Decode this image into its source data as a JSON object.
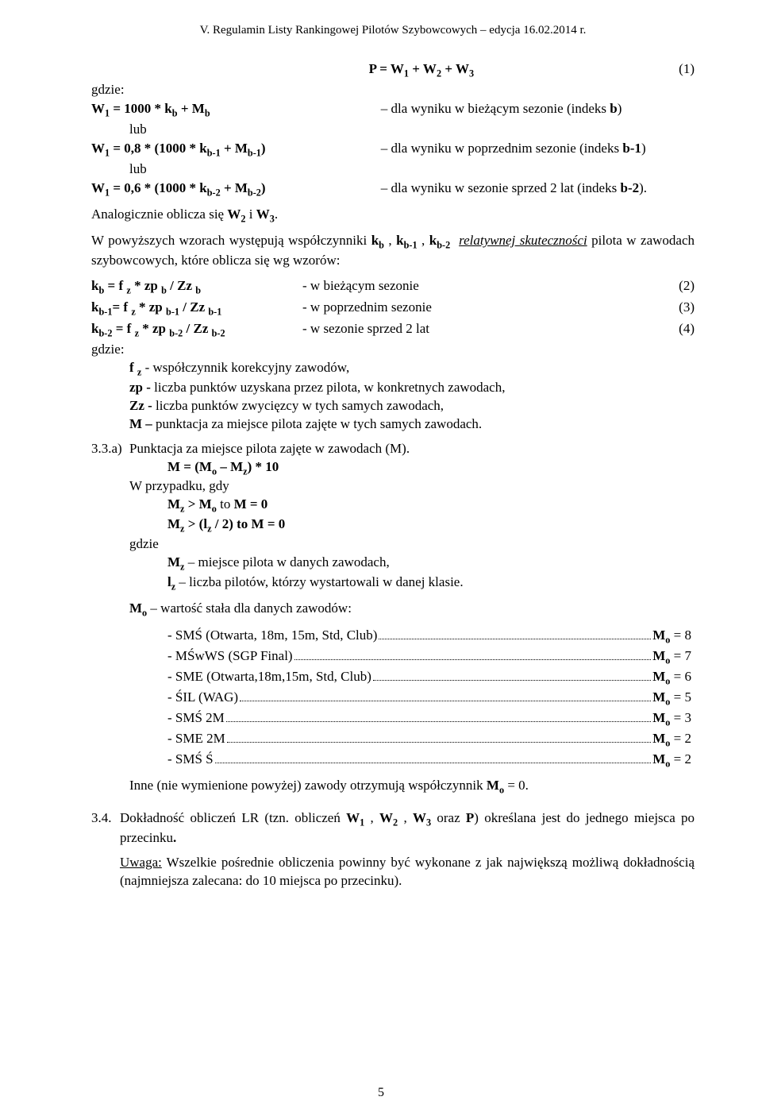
{
  "header": "V. Regulamin Listy Rankingowej Pilotów Szybowcowych – edycja 16.02.2014 r.",
  "gdzie": "gdzie:",
  "lub": "lub",
  "eq1": {
    "lhs": "P = W",
    "sub1": "1",
    "plus": " + W",
    "sub2": "2",
    "plus2": " + W",
    "sub3": "3",
    "num": "(1)"
  },
  "w1a": {
    "l": "W",
    "s1": "1",
    "t1": " = 1000 * k",
    "s2": "b",
    "t2": " + M",
    "s3": "b",
    "r": "– dla wyniku w bieżącym sezonie (indeks ",
    "rb": "b",
    "rc": ")"
  },
  "w1b": {
    "l": "W",
    "s1": "1",
    "t1": " = 0,8 * (1000 * k",
    "s2": "b-1",
    "t2": " + M",
    "s3": "b-1",
    "t3": ")",
    "r": "– dla wyniku w poprzednim sezonie (indeks ",
    "rb": "b-1",
    "rc": ")"
  },
  "w1c": {
    "l": "W",
    "s1": "1",
    "t1": " = 0,6 * (1000 * k",
    "s2": "b-2",
    "t2": " + M",
    "s3": "b-2",
    "t3": ")",
    "r": "– dla wyniku w sezonie sprzed 2 lat (indeks ",
    "rb": "b-2",
    "rc": ")."
  },
  "analog": {
    "a": "Analogicznie oblicza się ",
    "w2": "W",
    "s2": "2",
    "i": " i ",
    "w3": "W",
    "s3": "3",
    "dot": "."
  },
  "intro": {
    "a": "W powyższych wzorach występują współczynniki ",
    "k1": "k",
    "s1": "b",
    "c1": " , ",
    "k2": "k",
    "s2": "b-1",
    "c2": " , ",
    "k3": "k",
    "s3": "b-2",
    "rel": "relatywnej skuteczności",
    "b": " pilota w zawodach szybowcowych, które oblicza się wg wzorów:"
  },
  "eq2": {
    "l": "k",
    "s1": "b",
    "t1": " = f ",
    "sz": "z",
    "t2": " * zp ",
    "sb": "b",
    "t3": " / Zz ",
    "sb2": "b",
    "desc": "- w bieżącym sezonie",
    "num": "(2)"
  },
  "eq3": {
    "l": "k",
    "s1": "b-1",
    "t1": "= f ",
    "sz": "z",
    "t2": " * zp ",
    "sb": "b-1",
    "t3": " / Zz ",
    "sb2": "b-1",
    "desc": "- w poprzednim sezonie",
    "num": "(3)"
  },
  "eq4": {
    "l": "k",
    "s1": "b-2",
    "t1": " = f ",
    "sz": "z",
    "t2": " * zp ",
    "sb": "b-2",
    "t3": " / Zz ",
    "sb2": "b-2",
    "desc": "- w sezonie sprzed 2 lat",
    "num": "(4)"
  },
  "defs": {
    "fz": {
      "a": "f ",
      "s": "z",
      "b": " - współczynnik korekcyjny zawodów,"
    },
    "zp": {
      "a": "zp -",
      "b": " liczba punktów uzyskana przez pilota, w konkretnych zawodach,"
    },
    "Zz": {
      "a": "Zz -",
      "b": " liczba punktów zwycięzcy w tych samych zawodach,"
    },
    "M": {
      "a": "M –",
      "b": " punktacja za miejsce pilota zajęte w tych samych zawodach."
    }
  },
  "sec33a": {
    "num": "3.3.a)",
    "title": "Punktacja za miejsce pilota zajęte w zawodach (M).",
    "mline": {
      "a": "M = (M",
      "so": "o",
      "b": " – M",
      "sz": "z",
      "c": ") * 10"
    },
    "wprz": "W przypadku, gdy",
    "c1": {
      "a": "M",
      "sz": "z",
      "b": " > M",
      "so": "o",
      "c": " to ",
      "m": "M = 0"
    },
    "c2": {
      "a": "M",
      "sz": "z",
      "b": " > (l",
      "slz": "z",
      "c": " / 2) to ",
      "m": "M = 0"
    },
    "gdzie": "gdzie",
    "mz": {
      "a": "M",
      "s": "z",
      "b": " – miejsce pilota w danych zawodach,"
    },
    "lz": {
      "a": "l",
      "s": "z",
      "b": " – liczba pilotów, którzy wystartowali w danej klasie."
    },
    "moHead": {
      "a": "M",
      "s": "o",
      "b": " – wartość stała dla danych zawodów:"
    },
    "rows": [
      {
        "lead": "- SMŚ (Otwarta, 18m, 15m, Std, Club)",
        "tail": "M",
        "sub": "o",
        "eq": " = 8"
      },
      {
        "lead": "- MŚwWS (SGP Final)",
        "tail": "M",
        "sub": "o",
        "eq": " = 7"
      },
      {
        "lead": "- SME (Otwarta,18m,15m, Std, Club)",
        "tail": "M",
        "sub": "o",
        "eq": " = 6"
      },
      {
        "lead": "- ŚIL (WAG)",
        "tail": "M",
        "sub": "o",
        "eq": " = 5"
      },
      {
        "lead": "- SMŚ 2M",
        "tail": "M",
        "sub": "o",
        "eq": " = 3"
      },
      {
        "lead": "- SME 2M",
        "tail": "M",
        "sub": "o",
        "eq": " = 2"
      },
      {
        "lead": "- SMŚ Ś",
        "tail": "M",
        "sub": "o",
        "eq": " = 2"
      }
    ],
    "inne": {
      "a": "Inne (nie wymienione powyżej) zawody otrzymują współczynnik ",
      "m": "M",
      "s": "o",
      "b": " = 0."
    }
  },
  "sec34": {
    "num": "3.4.",
    "a": "Dokładność obliczeń LR (tzn. obliczeń ",
    "w1": "W",
    "s1": "1",
    "c1": " , ",
    "w2": "W",
    "s2": "2",
    "c2": " , ",
    "w3": "W",
    "s3": "3",
    "o": " oraz ",
    "p": "P",
    "b": ") określana jest do jednego miejsca po przecinku",
    "dot": "."
  },
  "uwaga": {
    "a": "Uwaga:",
    "b": " Wszelkie pośrednie obliczenia powinny być wykonane z jak największą możliwą dokładnością (najmniejsza zalecana: do 10 miejsca po przecinku)."
  },
  "pageNumber": "5"
}
